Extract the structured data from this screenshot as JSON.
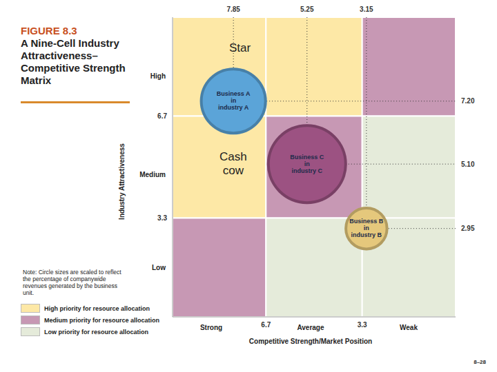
{
  "chart_data": {
    "type": "bubble",
    "title": "FIGURE 8.3",
    "subtitle": "A Nine-Cell Industry Attractiveness–Competitive Strength Matrix",
    "x_label": "Competitive Strength/Market Position",
    "y_label": "Industry Attractiveness",
    "x_categories": [
      "Strong",
      "Average",
      "Weak"
    ],
    "y_categories": [
      "High",
      "Medium",
      "Low"
    ],
    "xlim": [
      10,
      0
    ],
    "xticks": [
      6.7,
      3.3
    ],
    "ylim": [
      0,
      10
    ],
    "yticks": [
      6.7,
      3.3
    ],
    "x2lim": [
      10,
      0
    ],
    "x2ticks": [
      7.85,
      5.25,
      3.15
    ],
    "y2lim": [
      0,
      10
    ],
    "y2ticks": [
      {
        "value": 7.2,
        "label": "7.20"
      },
      {
        "value": 5.1,
        "label": "5.10"
      },
      {
        "value": 2.95,
        "label": "2.95"
      }
    ],
    "line_style": "dotted",
    "points": [
      {
        "name": "Business A\nin\nindustry A",
        "x": 7.85,
        "y": 7.2,
        "size": 35,
        "color": "#5ba4d8"
      },
      {
        "name": "Business C\nin\nindustry C",
        "x": 5.25,
        "y": 5.1,
        "size": 50,
        "color": "#9c5282"
      },
      {
        "name": "Business B\nin\nindustry B",
        "x": 3.15,
        "y": 2.95,
        "size": 15,
        "color": "#e5c87c"
      }
    ],
    "annotations": [
      "Star",
      "Cash\ncow"
    ],
    "priorities": [
      {
        "name": "High priority for resource allocation",
        "color": "#fde8a6"
      },
      {
        "name": "Medium priority for resource allocation",
        "color": "#c798b4"
      },
      {
        "name": "Low priority for resource allocation",
        "color": "#e5ebda"
      }
    ],
    "cells": {
      "colors": [
        [
          "#fde8a6",
          "#fde8a6",
          "#c798b4"
        ],
        [
          "#fde8a6",
          "#c798b4",
          "#e5ebda"
        ],
        [
          "#c798b4",
          "#e5ebda",
          "#e5ebda"
        ]
      ]
    },
    "note": "Note: Circle sizes are scaled to reflect the percentage of companywide revenues generated by the business unit.",
    "page": "8–28"
  }
}
